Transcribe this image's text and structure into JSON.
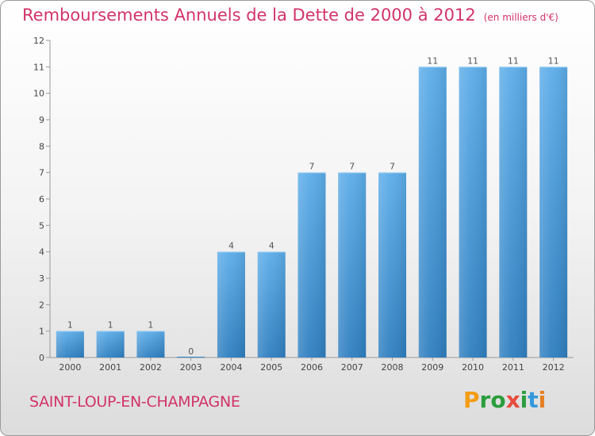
{
  "header": {
    "title": "Remboursements Annuels de la Dette de 2000 à 2012",
    "subtitle": "(en milliers d'€)"
  },
  "footer": {
    "commune": "SAINT-LOUP-EN-CHAMPAGNE",
    "logo_text": "Proxiti",
    "logo_colors": [
      "#f39c12",
      "#2a9d3c",
      "#2a9d3c",
      "#e74c3c",
      "#2a9d3c",
      "#3498db",
      "#e67e22"
    ]
  },
  "chart_data": {
    "type": "bar",
    "title": "Remboursements Annuels de la Dette de 2000 à 2012",
    "subtitle": "(en milliers d'€)",
    "categories": [
      "2000",
      "2001",
      "2002",
      "2003",
      "2004",
      "2005",
      "2006",
      "2007",
      "2008",
      "2009",
      "2010",
      "2011",
      "2012"
    ],
    "values": [
      1,
      1,
      1,
      0,
      4,
      4,
      7,
      7,
      7,
      11,
      11,
      11,
      11
    ],
    "data_labels": [
      "1",
      "1",
      "1",
      "0",
      "4",
      "4",
      "7",
      "7",
      "7",
      "11",
      "11",
      "11",
      "11"
    ],
    "yticks": [
      "0",
      "1",
      "2",
      "3",
      "4",
      "5",
      "6",
      "7",
      "8",
      "9",
      "10",
      "11",
      "12"
    ],
    "ylim": [
      0,
      12
    ],
    "xlabel": "",
    "ylabel": "",
    "grid": false,
    "bar_color_top": "#5dade9",
    "bar_color_bottom": "#2f7fc0"
  }
}
